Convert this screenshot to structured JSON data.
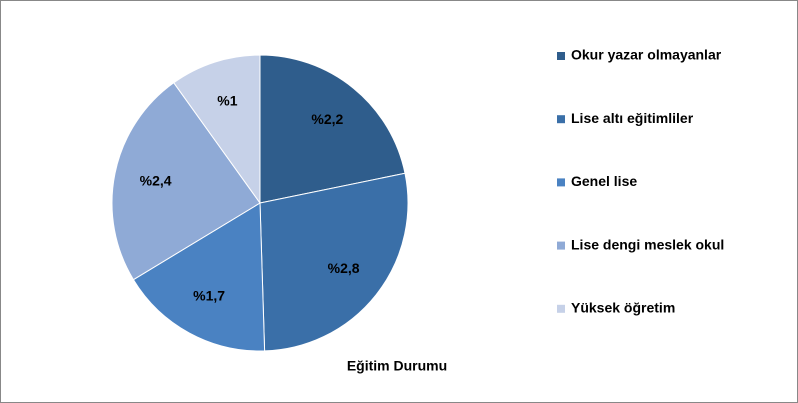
{
  "chart_data": {
    "type": "pie",
    "title": "Eğitim Durumu",
    "categories": [
      "Okur yazar olmayanlar",
      "Lise altı eğitimliler",
      "Genel lise",
      "Lise dengi meslek okul",
      "Yüksek öğretim"
    ],
    "values": [
      2.2,
      2.8,
      1.7,
      2.4,
      1
    ],
    "value_labels": [
      "%2,2",
      "%2,8",
      "%1,7",
      "%2,4",
      "%1"
    ],
    "colors": [
      "#2f5d8c",
      "#3a6fa8",
      "#4a82c2",
      "#8faad6",
      "#c6d1e8"
    ],
    "legend": "right"
  }
}
